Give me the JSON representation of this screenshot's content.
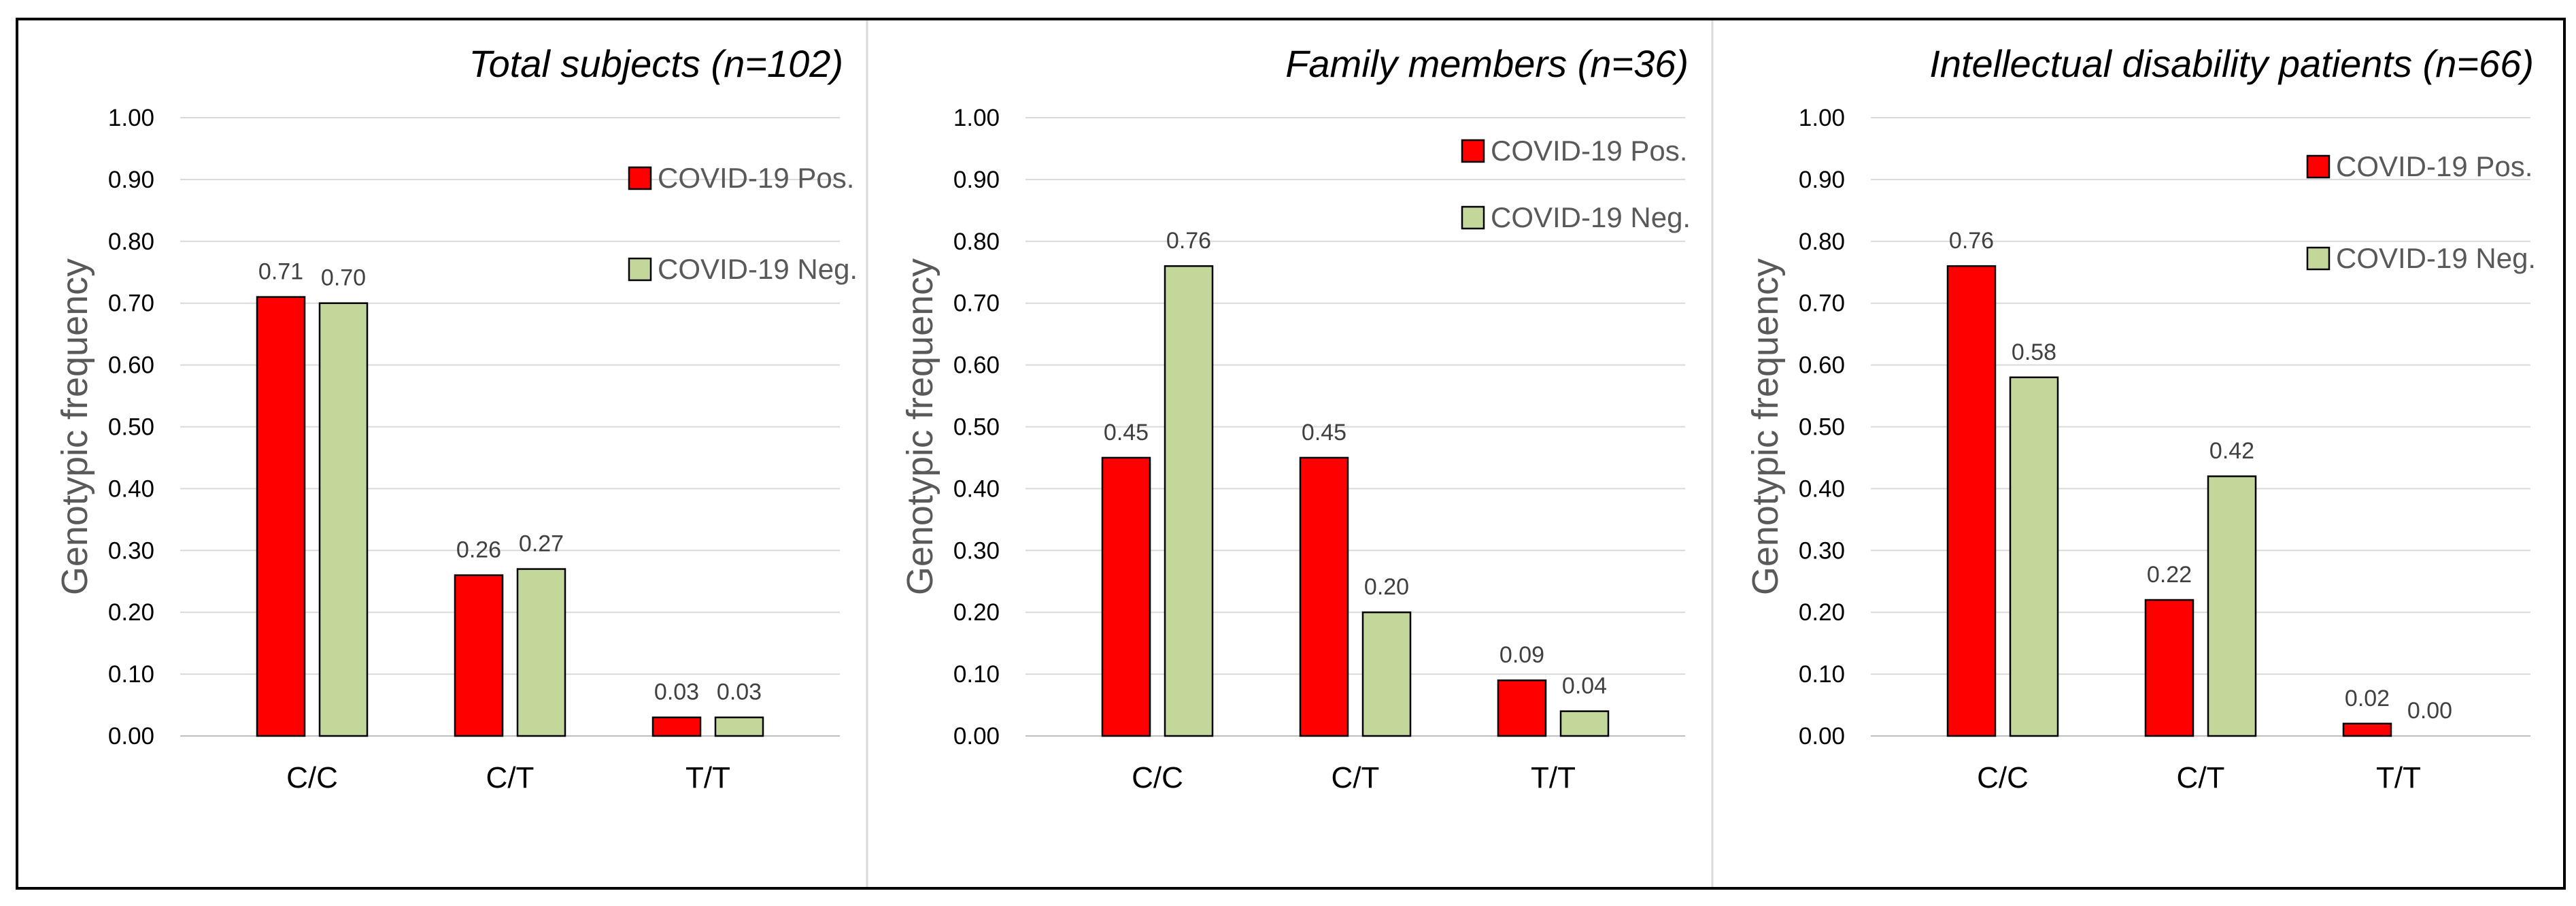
{
  "colors": {
    "pos": "#FF0000",
    "neg": "#C4D79B",
    "grid": "#D9D9D9",
    "text": "#000000",
    "axis_text": "#595959",
    "divider": "#D9D9D9",
    "frame": "#000000"
  },
  "chart_data": [
    {
      "type": "bar",
      "title": "Total subjects (n=102)",
      "xlabel": "",
      "ylabel": "Genotypic frequency",
      "ylim": [
        0,
        1
      ],
      "yticks": [
        "0.00",
        "0.10",
        "0.20",
        "0.30",
        "0.40",
        "0.50",
        "0.60",
        "0.70",
        "0.80",
        "0.90",
        "1.00"
      ],
      "categories": [
        "C/C",
        "C/T",
        "T/T"
      ],
      "series": [
        {
          "name": "COVID-19 Pos.",
          "values": [
            0.71,
            0.26,
            0.03
          ],
          "labels": [
            "0.71",
            "0.26",
            "0.03"
          ]
        },
        {
          "name": "COVID-19 Neg.",
          "values": [
            0.7,
            0.27,
            0.03
          ],
          "labels": [
            "0.70",
            "0.27",
            "0.03"
          ]
        }
      ],
      "legend": "top-right",
      "grid": true
    },
    {
      "type": "bar",
      "title": "Family members (n=36)",
      "xlabel": "",
      "ylabel": "Genotypic frequency",
      "ylim": [
        0,
        1
      ],
      "yticks": [
        "0.00",
        "0.10",
        "0.20",
        "0.30",
        "0.40",
        "0.50",
        "0.60",
        "0.70",
        "0.80",
        "0.90",
        "1.00"
      ],
      "categories": [
        "C/C",
        "C/T",
        "T/T"
      ],
      "series": [
        {
          "name": "COVID-19 Pos.",
          "values": [
            0.45,
            0.45,
            0.09
          ],
          "labels": [
            "0.45",
            "0.45",
            "0.09"
          ]
        },
        {
          "name": "COVID-19 Neg.",
          "values": [
            0.76,
            0.2,
            0.04
          ],
          "labels": [
            "0.76",
            "0.20",
            "0.04"
          ]
        }
      ],
      "legend": "top-right",
      "grid": true
    },
    {
      "type": "bar",
      "title": "Intellectual disability patients (n=66)",
      "xlabel": "",
      "ylabel": "Genotypic frequency",
      "ylim": [
        0,
        1
      ],
      "yticks": [
        "0.00",
        "0.10",
        "0.20",
        "0.30",
        "0.40",
        "0.50",
        "0.60",
        "0.70",
        "0.80",
        "0.90",
        "1.00"
      ],
      "categories": [
        "C/C",
        "C/T",
        "T/T"
      ],
      "series": [
        {
          "name": "COVID-19 Pos.",
          "values": [
            0.76,
            0.22,
            0.02
          ],
          "labels": [
            "0.76",
            "0.22",
            "0.02"
          ]
        },
        {
          "name": "COVID-19 Neg.",
          "values": [
            0.58,
            0.42,
            0.0
          ],
          "labels": [
            "0.58",
            "0.42",
            "0.00"
          ]
        }
      ],
      "legend": "top-right",
      "grid": true
    }
  ]
}
